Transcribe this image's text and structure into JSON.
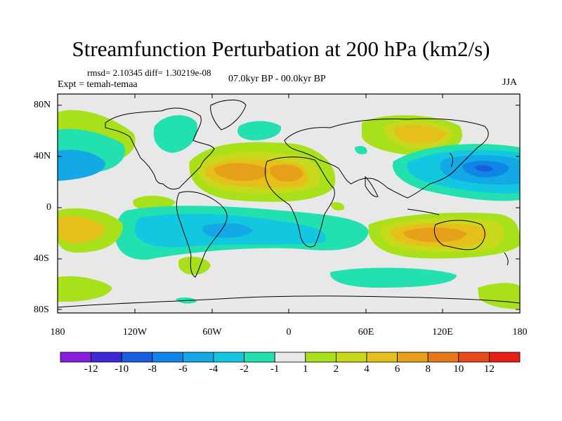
{
  "header": {
    "title": "Streamfunction Perturbation at 200 hPa (km2/s)",
    "stats": "rmsd= 2.10345 diff= 1.30219e-08",
    "experiment": "Expt = temah-temaa",
    "period": "07.0kyr BP - 00.0kyr BP",
    "season": "JJA"
  },
  "axes": {
    "lat_labels": [
      "80N",
      "40N",
      "0",
      "40S",
      "80S"
    ],
    "lon_labels": [
      "180",
      "120W",
      "60W",
      "0",
      "60E",
      "120E",
      "180"
    ]
  },
  "colorbar": {
    "labels": [
      "-12",
      "-10",
      "-8",
      "-6",
      "-4",
      "-2",
      "-1",
      "1",
      "2",
      "4",
      "6",
      "8",
      "10",
      "12"
    ],
    "colors": [
      "#8a1ee0",
      "#3c28d6",
      "#1a5ee0",
      "#0f86e6",
      "#13a8e6",
      "#12c8e0",
      "#22e0b0",
      "#e8e8e8",
      "#a8e01a",
      "#c8d81a",
      "#e6c01a",
      "#e6a01a",
      "#e6781a",
      "#e64a1a",
      "#e61e14"
    ]
  },
  "map_features": {
    "positive_centers": [
      "Atlantic/North Africa",
      "North Pacific",
      "Australia/Indian Ocean",
      "South Pacific"
    ],
    "negative_centers": [
      "Western North Pacific",
      "North Atlantic",
      "South America/South Atlantic",
      "Eastern North Pacific"
    ]
  }
}
